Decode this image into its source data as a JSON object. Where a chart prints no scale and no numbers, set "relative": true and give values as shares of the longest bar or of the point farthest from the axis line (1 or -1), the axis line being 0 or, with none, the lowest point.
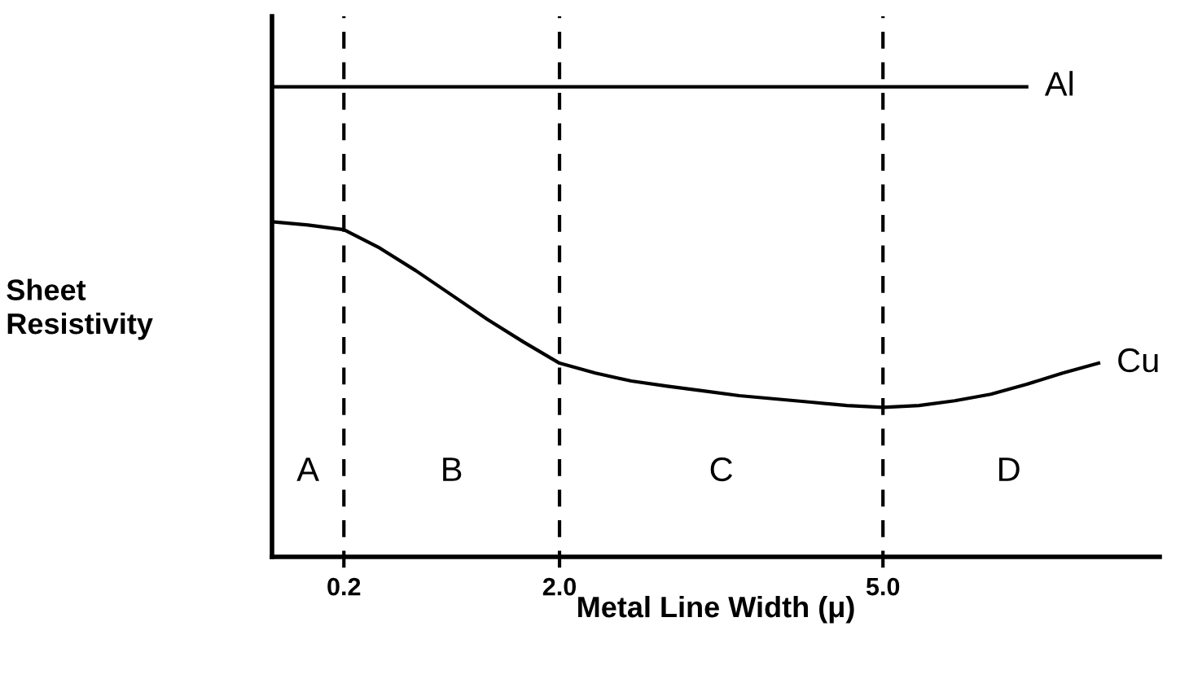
{
  "chart_data": {
    "type": "line",
    "relative": true,
    "xlabel": "Metal Line Width (μ)",
    "ylabel": "Sheet\nResistivity",
    "categories": [
      null,
      null,
      "0.2",
      null,
      null,
      null,
      null,
      null,
      "2.0",
      null,
      null,
      null,
      null,
      null,
      null,
      null,
      null,
      "5.0",
      null,
      null,
      null,
      null,
      null,
      null,
      null
    ],
    "series": [
      {
        "name": "Al",
        "color": "#000000",
        "values": [
          1,
          1,
          1,
          1,
          1,
          1,
          1,
          1,
          1,
          1,
          1,
          1,
          1,
          1,
          1,
          1,
          1,
          1,
          1,
          1,
          1,
          1,
          null,
          null,
          null
        ]
      },
      {
        "name": "Cu",
        "color": "#000000",
        "values": [
          0.713,
          0.706,
          0.696,
          0.657,
          0.609,
          0.557,
          0.505,
          0.457,
          0.412,
          0.391,
          0.374,
          0.363,
          0.353,
          0.343,
          0.336,
          0.329,
          0.322,
          0.318,
          0.322,
          0.332,
          0.346,
          0.367,
          0.391,
          0.412,
          null
        ]
      }
    ],
    "annotations": [
      "A",
      "B",
      "C",
      "D"
    ],
    "grid": "x",
    "legend": false,
    "marker": "none",
    "line_style": "solid"
  }
}
